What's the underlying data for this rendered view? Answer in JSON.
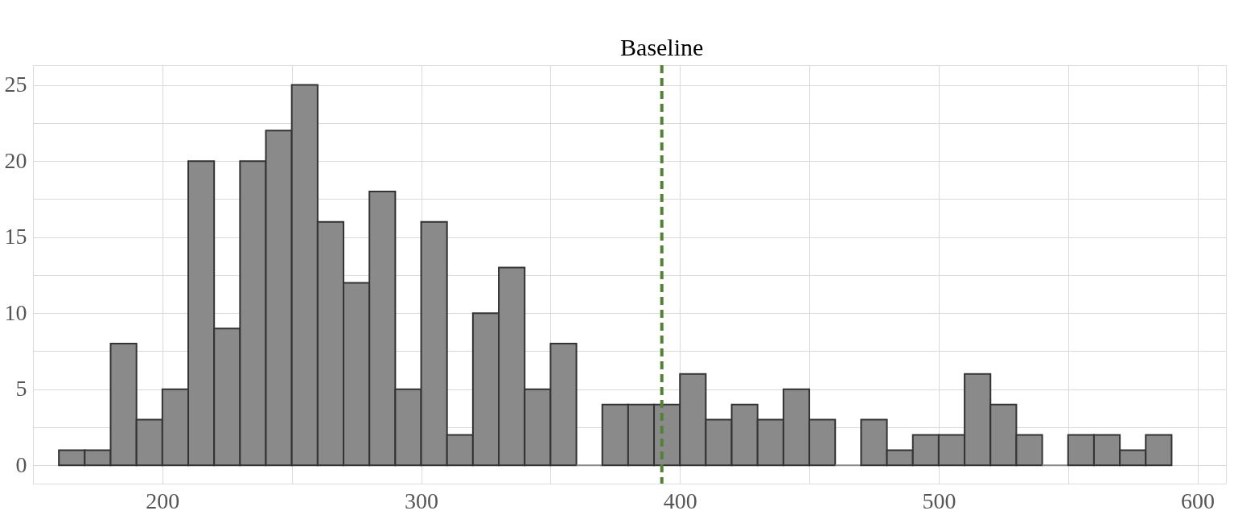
{
  "chart_data": {
    "type": "histogram",
    "bins": [
      160,
      170,
      180,
      190,
      200,
      210,
      220,
      230,
      240,
      250,
      260,
      270,
      280,
      290,
      300,
      310,
      320,
      330,
      340,
      350,
      360,
      370,
      380,
      390,
      400,
      410,
      420,
      430,
      440,
      450,
      460,
      470,
      480,
      490,
      500,
      510,
      520,
      530,
      540,
      550,
      560,
      570,
      580,
      590
    ],
    "values": [
      1,
      1,
      8,
      3,
      5,
      20,
      9,
      20,
      22,
      25,
      16,
      12,
      18,
      5,
      16,
      2,
      10,
      13,
      5,
      8,
      0,
      4,
      4,
      4,
      6,
      3,
      4,
      3,
      5,
      3,
      0,
      3,
      1,
      2,
      2,
      6,
      4,
      2,
      0,
      2,
      2,
      1,
      2
    ],
    "color": "#8a8a8a",
    "xlim": [
      150,
      611
    ],
    "ylim": [
      -1.2,
      26.3
    ],
    "xticks": [
      {
        "value": 150,
        "label": null
      },
      200,
      {
        "value": 250,
        "label": null
      },
      300,
      {
        "value": 350,
        "label": null
      },
      400,
      {
        "value": 450,
        "label": null
      },
      500,
      {
        "value": 550,
        "label": null
      },
      600
    ],
    "yticks": [
      0,
      {
        "value": 2.5,
        "label": null
      },
      5,
      {
        "value": 7.5,
        "label": null
      },
      10,
      {
        "value": 12.5,
        "label": null
      },
      15,
      {
        "value": 17.5,
        "label": null
      },
      20,
      {
        "value": 22.5,
        "label": null
      },
      25
    ],
    "grid": true,
    "ref_lines": [
      {
        "axis": "x",
        "value": 393,
        "label": "Baseline",
        "color": "#548235",
        "line_style": "dashed"
      }
    ]
  }
}
